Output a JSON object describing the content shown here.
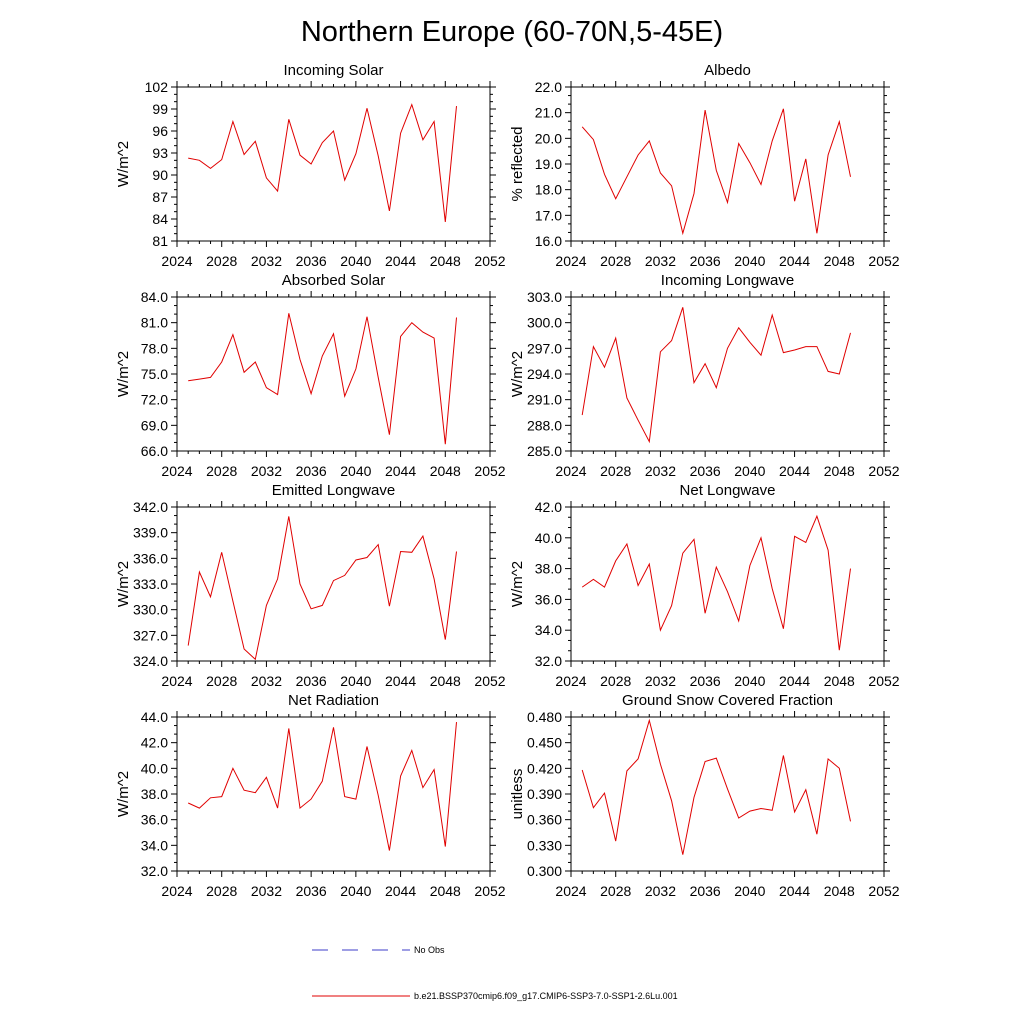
{
  "title": "Northern Europe (60-70N,5-45E)",
  "legend": {
    "entries": [
      {
        "label": "No Obs",
        "color": "#3c3cc8",
        "dashed": true
      },
      {
        "label": "b.e21.BSSP370cmip6.f09_g17.CMIP6-SSP3-7.0-SSP1-2.6Lu.001",
        "color": "#e00000",
        "dashed": false
      }
    ]
  },
  "chart_data": [
    {
      "type": "line",
      "title": "Incoming Solar",
      "ylabel": "W/m^2",
      "xlim": [
        2024,
        2052
      ],
      "xticks": [
        "2024",
        "2028",
        "2032",
        "2036",
        "2040",
        "2044",
        "2048",
        "2052"
      ],
      "ylim": [
        81,
        102
      ],
      "yticks": [
        "81",
        "84",
        "87",
        "90",
        "93",
        "96",
        "99",
        "102"
      ],
      "x": [
        2025,
        2026,
        2027,
        2028,
        2029,
        2030,
        2031,
        2032,
        2033,
        2034,
        2035,
        2036,
        2037,
        2038,
        2039,
        2040,
        2041,
        2042,
        2043,
        2044,
        2045,
        2046,
        2047,
        2048,
        2049
      ],
      "series": [
        {
          "color": "#e00000",
          "values": [
            92.3,
            92.0,
            90.9,
            92.1,
            97.3,
            92.8,
            94.6,
            89.6,
            87.8,
            97.6,
            92.7,
            91.5,
            94.4,
            96.0,
            89.3,
            92.9,
            99.1,
            92.6,
            85.1,
            95.7,
            99.6,
            94.8,
            97.3,
            83.6,
            99.4
          ]
        }
      ]
    },
    {
      "type": "line",
      "title": "Albedo",
      "ylabel": "% reflected",
      "xlim": [
        2024,
        2052
      ],
      "xticks": [
        "2024",
        "2028",
        "2032",
        "2036",
        "2040",
        "2044",
        "2048",
        "2052"
      ],
      "ylim": [
        16.0,
        22.0
      ],
      "yticks": [
        "16.0",
        "17.0",
        "18.0",
        "19.0",
        "20.0",
        "21.0",
        "22.0"
      ],
      "x": [
        2025,
        2026,
        2027,
        2028,
        2029,
        2030,
        2031,
        2032,
        2033,
        2034,
        2035,
        2036,
        2037,
        2038,
        2039,
        2040,
        2041,
        2042,
        2043,
        2044,
        2045,
        2046,
        2047,
        2048,
        2049
      ],
      "series": [
        {
          "color": "#e00000",
          "values": [
            20.45,
            19.95,
            18.6,
            17.65,
            18.5,
            19.35,
            19.9,
            18.65,
            18.15,
            16.3,
            17.85,
            21.1,
            18.75,
            17.5,
            19.8,
            19.05,
            18.2,
            19.9,
            21.15,
            17.55,
            19.2,
            16.3,
            19.35,
            20.65,
            18.5
          ]
        }
      ]
    },
    {
      "type": "line",
      "title": "Absorbed Solar",
      "ylabel": "W/m^2",
      "xlim": [
        2024,
        2052
      ],
      "xticks": [
        "2024",
        "2028",
        "2032",
        "2036",
        "2040",
        "2044",
        "2048",
        "2052"
      ],
      "ylim": [
        66.0,
        84.0
      ],
      "yticks": [
        "66.0",
        "69.0",
        "72.0",
        "75.0",
        "78.0",
        "81.0",
        "84.0"
      ],
      "x": [
        2025,
        2026,
        2027,
        2028,
        2029,
        2030,
        2031,
        2032,
        2033,
        2034,
        2035,
        2036,
        2037,
        2038,
        2039,
        2040,
        2041,
        2042,
        2043,
        2044,
        2045,
        2046,
        2047,
        2048,
        2049
      ],
      "series": [
        {
          "color": "#e00000",
          "values": [
            74.2,
            74.4,
            74.6,
            76.4,
            79.6,
            75.2,
            76.4,
            73.4,
            72.6,
            82.1,
            76.7,
            72.7,
            77.1,
            79.7,
            72.4,
            75.6,
            81.7,
            74.6,
            67.9,
            79.4,
            81.0,
            79.9,
            79.2,
            66.8,
            81.6
          ]
        }
      ]
    },
    {
      "type": "line",
      "title": "Incoming Longwave",
      "ylabel": "W/m^2",
      "xlim": [
        2024,
        2052
      ],
      "xticks": [
        "2024",
        "2028",
        "2032",
        "2036",
        "2040",
        "2044",
        "2048",
        "2052"
      ],
      "ylim": [
        285.0,
        303.0
      ],
      "yticks": [
        "285.0",
        "288.0",
        "291.0",
        "294.0",
        "297.0",
        "300.0",
        "303.0"
      ],
      "x": [
        2025,
        2026,
        2027,
        2028,
        2029,
        2030,
        2031,
        2032,
        2033,
        2034,
        2035,
        2036,
        2037,
        2038,
        2039,
        2040,
        2041,
        2042,
        2043,
        2044,
        2045,
        2046,
        2047,
        2048,
        2049
      ],
      "series": [
        {
          "color": "#e00000",
          "values": [
            289.2,
            297.2,
            294.8,
            298.2,
            291.2,
            288.6,
            286.1,
            296.6,
            297.9,
            301.8,
            293.0,
            295.2,
            292.4,
            297.0,
            299.4,
            297.7,
            296.2,
            300.9,
            296.5,
            296.8,
            297.2,
            297.2,
            294.3,
            294.0,
            298.8
          ]
        }
      ]
    },
    {
      "type": "line",
      "title": "Emitted Longwave",
      "ylabel": "W/m^2",
      "xlim": [
        2024,
        2052
      ],
      "xticks": [
        "2024",
        "2028",
        "2032",
        "2036",
        "2040",
        "2044",
        "2048",
        "2052"
      ],
      "ylim": [
        324.0,
        342.0
      ],
      "yticks": [
        "324.0",
        "327.0",
        "330.0",
        "333.0",
        "336.0",
        "339.0",
        "342.0"
      ],
      "x": [
        2025,
        2026,
        2027,
        2028,
        2029,
        2030,
        2031,
        2032,
        2033,
        2034,
        2035,
        2036,
        2037,
        2038,
        2039,
        2040,
        2041,
        2042,
        2043,
        2044,
        2045,
        2046,
        2047,
        2048,
        2049
      ],
      "series": [
        {
          "color": "#e00000",
          "values": [
            325.8,
            334.4,
            331.5,
            336.7,
            331.0,
            325.4,
            324.2,
            330.5,
            333.6,
            340.9,
            333.0,
            330.1,
            330.5,
            333.4,
            334.0,
            335.8,
            336.1,
            337.6,
            330.4,
            336.8,
            336.7,
            338.6,
            333.6,
            326.5,
            336.8
          ]
        }
      ]
    },
    {
      "type": "line",
      "title": "Net Longwave",
      "ylabel": "W/m^2",
      "xlim": [
        2024,
        2052
      ],
      "xticks": [
        "2024",
        "2028",
        "2032",
        "2036",
        "2040",
        "2044",
        "2048",
        "2052"
      ],
      "ylim": [
        32.0,
        42.0
      ],
      "yticks": [
        "32.0",
        "34.0",
        "36.0",
        "38.0",
        "40.0",
        "42.0"
      ],
      "x": [
        2025,
        2026,
        2027,
        2028,
        2029,
        2030,
        2031,
        2032,
        2033,
        2034,
        2035,
        2036,
        2037,
        2038,
        2039,
        2040,
        2041,
        2042,
        2043,
        2044,
        2045,
        2046,
        2047,
        2048,
        2049
      ],
      "series": [
        {
          "color": "#e00000",
          "values": [
            36.8,
            37.3,
            36.8,
            38.5,
            39.6,
            36.9,
            38.3,
            34.0,
            35.6,
            39.0,
            39.9,
            35.1,
            38.1,
            36.5,
            34.6,
            38.2,
            40.0,
            36.7,
            34.1,
            40.1,
            39.7,
            41.4,
            39.2,
            32.7,
            38.0
          ]
        }
      ]
    },
    {
      "type": "line",
      "title": "Net Radiation",
      "ylabel": "W/m^2",
      "xlim": [
        2024,
        2052
      ],
      "xticks": [
        "2024",
        "2028",
        "2032",
        "2036",
        "2040",
        "2044",
        "2048",
        "2052"
      ],
      "ylim": [
        32.0,
        44.0
      ],
      "yticks": [
        "32.0",
        "34.0",
        "36.0",
        "38.0",
        "40.0",
        "42.0",
        "44.0"
      ],
      "x": [
        2025,
        2026,
        2027,
        2028,
        2029,
        2030,
        2031,
        2032,
        2033,
        2034,
        2035,
        2036,
        2037,
        2038,
        2039,
        2040,
        2041,
        2042,
        2043,
        2044,
        2045,
        2046,
        2047,
        2048,
        2049
      ],
      "series": [
        {
          "color": "#e00000",
          "values": [
            37.3,
            36.9,
            37.7,
            37.8,
            40.0,
            38.3,
            38.1,
            39.3,
            36.9,
            43.1,
            36.9,
            37.6,
            39.0,
            43.2,
            37.8,
            37.6,
            41.7,
            37.9,
            33.6,
            39.4,
            41.4,
            38.5,
            39.9,
            33.9,
            43.6
          ]
        }
      ]
    },
    {
      "type": "line",
      "title": "Ground Snow Covered Fraction",
      "ylabel": "unitless",
      "xlim": [
        2024,
        2052
      ],
      "xticks": [
        "2024",
        "2028",
        "2032",
        "2036",
        "2040",
        "2044",
        "2048",
        "2052"
      ],
      "ylim": [
        0.3,
        0.48
      ],
      "yticks": [
        "0.300",
        "0.330",
        "0.360",
        "0.390",
        "0.420",
        "0.450",
        "0.480"
      ],
      "x": [
        2025,
        2026,
        2027,
        2028,
        2029,
        2030,
        2031,
        2032,
        2033,
        2034,
        2035,
        2036,
        2037,
        2038,
        2039,
        2040,
        2041,
        2042,
        2043,
        2044,
        2045,
        2046,
        2047,
        2048,
        2049
      ],
      "series": [
        {
          "color": "#e00000",
          "values": [
            0.418,
            0.374,
            0.391,
            0.335,
            0.417,
            0.431,
            0.476,
            0.425,
            0.382,
            0.319,
            0.386,
            0.428,
            0.432,
            0.396,
            0.362,
            0.37,
            0.373,
            0.371,
            0.435,
            0.369,
            0.395,
            0.343,
            0.431,
            0.42,
            0.358
          ]
        }
      ]
    }
  ]
}
